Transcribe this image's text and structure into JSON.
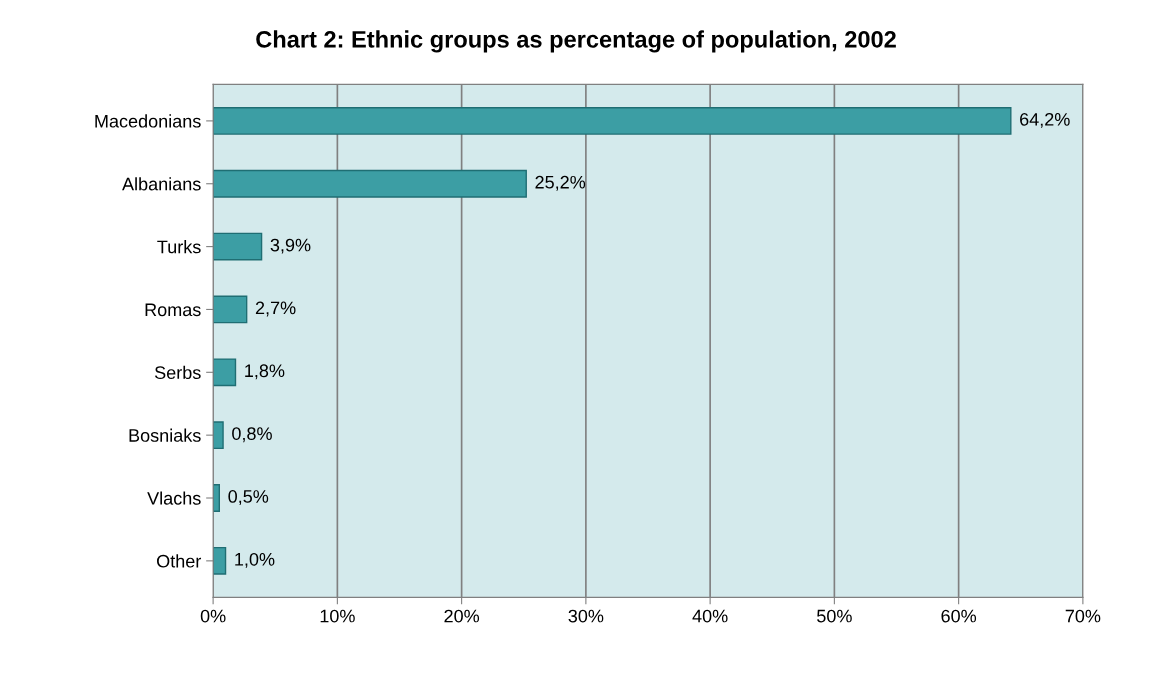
{
  "chart_data": {
    "type": "bar",
    "orientation": "horizontal",
    "title": "Chart 2: Ethnic groups as percentage of population, 2002",
    "categories": [
      "Macedonians",
      "Albanians",
      "Turks",
      "Romas",
      "Serbs",
      "Bosniaks",
      "Vlachs",
      "Other"
    ],
    "values": [
      64.2,
      25.2,
      3.9,
      2.7,
      1.8,
      0.8,
      0.5,
      1.0
    ],
    "value_labels": [
      "64,2%",
      "25,2%",
      "3,9%",
      "2,7%",
      "1,8%",
      "0,8%",
      "0,5%",
      "1,0%"
    ],
    "color": "#3c9ea4",
    "xlim": [
      0,
      70
    ],
    "xticks": [
      {
        "value": 0,
        "label": "0%"
      },
      {
        "value": 10,
        "label": "10%"
      },
      {
        "value": 20,
        "label": "20%"
      },
      {
        "value": 30,
        "label": "30%"
      },
      {
        "value": 40,
        "label": "40%"
      },
      {
        "value": 50,
        "label": "50%"
      },
      {
        "value": 60,
        "label": "60%"
      },
      {
        "value": 70,
        "label": "70%"
      }
    ],
    "grid": "x"
  }
}
